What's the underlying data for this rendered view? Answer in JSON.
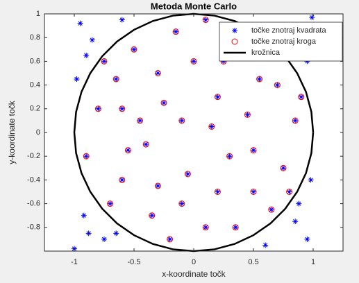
{
  "chart_data": {
    "type": "scatter",
    "title": "Metoda Monte Carlo",
    "x_label": "x-koordinate točk",
    "y_label": "y-koordinate točk",
    "xlim": [
      -1.25,
      1.25
    ],
    "ylim": [
      -1,
      1
    ],
    "xticks": [
      -1,
      -0.5,
      0,
      0.5,
      1
    ],
    "yticks": [
      -0.8,
      -0.6,
      -0.4,
      -0.2,
      0,
      0.2,
      0.4,
      0.6,
      0.8,
      1
    ],
    "legend": "northeast",
    "series": [
      {
        "name": "točke znotraj kvadrata",
        "color": "#0000ff",
        "marker": "asterisk",
        "x": [
          -0.95,
          -0.85,
          -0.92,
          -0.88,
          0.92,
          0.95,
          0.85,
          -0.75,
          0.7,
          -0.6,
          0.6,
          0.95,
          -0.98,
          0.98,
          -0.3,
          0.2,
          -0.6,
          0.5,
          0.7,
          -0.8,
          0.1,
          -0.2,
          0.4,
          -0.5,
          0.85,
          -0.1,
          0.3,
          -0.4,
          0.6,
          -0.7,
          0,
          0.2,
          -0.35,
          0.75,
          -0.65,
          0.45,
          -0.15,
          0.55,
          -0.9,
          0.9,
          -0.25,
          0.1,
          -0.55,
          0.35,
          -0.45,
          0.65,
          -0.05,
          0.25,
          -0.75,
          0.8,
          -1,
          0.99,
          -0.9,
          0.88,
          -0.65,
          -0.1,
          0.15,
          -0.3,
          0.5,
          -0.6
        ],
        "values": [
          0.92,
          0.78,
          -0.7,
          -0.85,
          0.88,
          -0.9,
          -0.75,
          -0.9,
          0.85,
          0.95,
          -0.95,
          0.6,
          0.45,
          -0.4,
          0.5,
          0.3,
          -0.4,
          -0.5,
          0.4,
          0.2,
          -0.8,
          -0.9,
          0.8,
          0.7,
          0.1,
          0.1,
          -0.2,
          -0.1,
          0.7,
          -0.6,
          0.6,
          -0.5,
          -0.7,
          -0.3,
          0.45,
          0.15,
          0.85,
          0.45,
          -0.2,
          0.3,
          0.25,
          0.95,
          -0.15,
          -0.8,
          0.1,
          -0.65,
          -0.35,
          0.6,
          0.6,
          -0.5,
          -0.98,
          0.97,
          0.65,
          -0.6,
          -0.85,
          -0.6,
          0.05,
          -0.45,
          -0.15,
          0.2
        ]
      },
      {
        "name": "točke znotraj kroga",
        "color": "#ff0000",
        "marker": "circle",
        "x": [
          -0.3,
          0.2,
          -0.6,
          0.5,
          0.7,
          -0.8,
          0.1,
          -0.2,
          0.4,
          -0.5,
          0.85,
          -0.1,
          0.3,
          -0.4,
          0.6,
          -0.7,
          0,
          0.2,
          -0.35,
          0.75,
          -0.65,
          0.45,
          -0.15,
          0.55,
          -0.9,
          0.9,
          -0.25,
          0.1,
          -0.55,
          0.35,
          -0.45,
          0.65,
          -0.05,
          0.25,
          -0.75,
          0.8,
          -0.1,
          0.15,
          -0.3,
          0.5,
          -0.6
        ],
        "values": [
          0.5,
          0.3,
          -0.4,
          -0.5,
          0.4,
          0.2,
          -0.8,
          -0.9,
          0.8,
          0.7,
          0.1,
          0.1,
          -0.2,
          -0.1,
          0.7,
          -0.6,
          0.6,
          -0.5,
          -0.7,
          -0.3,
          0.45,
          0.15,
          0.85,
          0.45,
          -0.2,
          0.3,
          0.25,
          0.95,
          -0.15,
          -0.8,
          0.1,
          -0.65,
          -0.35,
          0.6,
          0.6,
          -0.5,
          -0.6,
          0.05,
          -0.45,
          -0.15,
          0.2
        ]
      },
      {
        "name": "krožnica",
        "color": "#000000",
        "marker": "line",
        "x": [
          1,
          0.985,
          0.94,
          0.866,
          0.766,
          0.643,
          0.5,
          0.342,
          0.174,
          0,
          -0.174,
          -0.342,
          -0.5,
          -0.643,
          -0.766,
          -0.866,
          -0.94,
          -0.985,
          -1,
          -0.985,
          -0.94,
          -0.866,
          -0.766,
          -0.643,
          -0.5,
          -0.342,
          -0.174,
          0,
          0.174,
          0.342,
          0.5,
          0.643,
          0.766,
          0.866,
          0.94,
          0.985,
          1
        ],
        "values": [
          0,
          0.174,
          0.342,
          0.5,
          0.643,
          0.766,
          0.866,
          0.94,
          0.985,
          1,
          0.985,
          0.94,
          0.866,
          0.766,
          0.643,
          0.5,
          0.342,
          0.174,
          0,
          -0.174,
          -0.342,
          -0.5,
          -0.643,
          -0.766,
          -0.866,
          -0.94,
          -0.985,
          -1,
          -0.985,
          -0.94,
          -0.866,
          -0.766,
          -0.643,
          -0.5,
          -0.342,
          -0.174,
          0
        ]
      }
    ]
  }
}
